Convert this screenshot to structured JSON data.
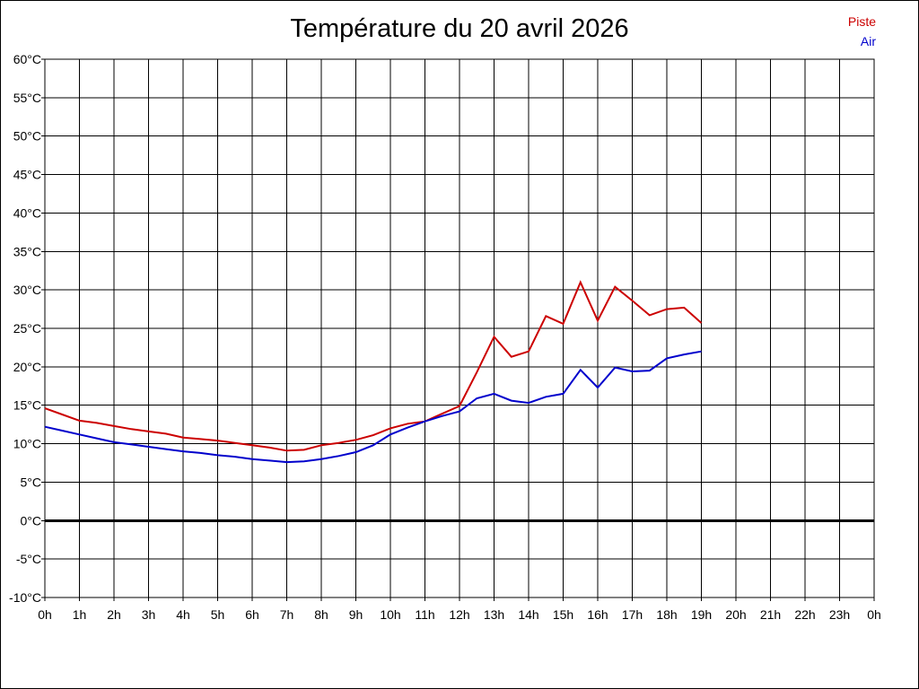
{
  "chart_data": {
    "type": "line",
    "title": "Température du 20 avril 2026",
    "xlabel": "",
    "ylabel": "",
    "x_tick_labels": [
      "0h",
      "1h",
      "2h",
      "3h",
      "4h",
      "5h",
      "6h",
      "7h",
      "8h",
      "9h",
      "10h",
      "11h",
      "12h",
      "13h",
      "14h",
      "15h",
      "16h",
      "17h",
      "18h",
      "19h",
      "20h",
      "21h",
      "22h",
      "23h",
      "0h"
    ],
    "y_tick_labels": [
      "60°C",
      "55°C",
      "50°C",
      "45°C",
      "40°C",
      "35°C",
      "30°C",
      "25°C",
      "20°C",
      "15°C",
      "10°C",
      "5°C",
      "0°C",
      "-5°C",
      "-10°C"
    ],
    "xlim": [
      0,
      24
    ],
    "ylim": [
      -10,
      60
    ],
    "grid": true,
    "legend_position": "top-right",
    "x": [
      0,
      0.5,
      1,
      1.5,
      2,
      2.5,
      3,
      3.5,
      4,
      4.5,
      5,
      5.5,
      6,
      6.5,
      7,
      7.5,
      8,
      8.5,
      9,
      9.5,
      10,
      10.5,
      11,
      11.5,
      12,
      12.5,
      13,
      13.5,
      14,
      14.5,
      15,
      15.5,
      16,
      16.5,
      17,
      17.5,
      18,
      18.5,
      19
    ],
    "series": [
      {
        "name": "Piste",
        "color": "#cc0000",
        "values": [
          14.6,
          13.8,
          13.0,
          12.7,
          12.3,
          11.9,
          11.6,
          11.3,
          10.8,
          10.6,
          10.4,
          10.1,
          9.8,
          9.5,
          9.1,
          9.2,
          9.8,
          10.1,
          10.5,
          11.1,
          12.0,
          12.6,
          12.9,
          13.9,
          14.9,
          19.3,
          23.9,
          21.3,
          22.0,
          26.6,
          25.6,
          31.0,
          26.0,
          30.4,
          28.6,
          26.7,
          27.5,
          27.7,
          25.7
        ]
      },
      {
        "name": "Air",
        "color": "#0000cc",
        "values": [
          12.2,
          11.7,
          11.2,
          10.7,
          10.2,
          9.9,
          9.6,
          9.3,
          9.0,
          8.8,
          8.5,
          8.3,
          8.0,
          7.8,
          7.6,
          7.7,
          8.0,
          8.4,
          8.9,
          9.8,
          11.2,
          12.1,
          12.9,
          13.6,
          14.2,
          15.9,
          16.5,
          15.6,
          15.3,
          16.1,
          16.5,
          19.6,
          17.3,
          19.9,
          19.4,
          19.5,
          21.1,
          21.6,
          22.0
        ]
      }
    ],
    "zero_line_color": "#000000",
    "background": "#ffffff"
  }
}
